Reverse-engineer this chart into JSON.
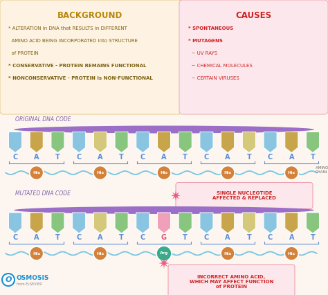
{
  "bg_color": "#fdf6f0",
  "bg_box_color": "#fef3e2",
  "causes_box_color": "#fce8ec",
  "bg_title": "BACKGROUND",
  "causes_title": "CAUSES",
  "bg_text_lines": [
    [
      "* ALTERATION in DNA that RESULTS in DIFFERENT",
      false
    ],
    [
      "  AMINO ACID BEING INCORPORATED into STRUCTURE",
      false
    ],
    [
      "  of PROTEIN",
      false
    ],
    [
      "* CONSERVATIVE - PROTEIN REMAINS FUNCTIONAL",
      true
    ],
    [
      "* NONCONSERVATIVE - PROTEIN is NON-FUNCTIONAL",
      true
    ]
  ],
  "causes_lines": [
    "* SPONTANEOUS",
    "* MUTAGENS",
    "  ~ UV RAYS",
    "  ~ CHEMICAL MOLECULES",
    "  ~ CERTAIN VIRUSES"
  ],
  "original_label": "ORIGINAL DNA CODE",
  "mutated_label": "MUTATED DNA CODE",
  "amino_acid_label": "AMINO ACID\nCHAIN",
  "single_nuc_label": "SINGLE NUCLEOTIDE\nAFFECTED & REPLACED",
  "incorrect_label": "INCORRECT AMINO ACID,\nWHICH MAY AFFECT FUNCTION\nof PROTEIN",
  "dna_letters_orig": [
    "C",
    "A",
    "T",
    "C",
    "A",
    "T",
    "C",
    "A",
    "T",
    "C",
    "A",
    "T",
    "C",
    "A",
    "T"
  ],
  "dna_letters_mut": [
    "C",
    "A",
    "T",
    "C",
    "A",
    "T",
    "C",
    "G",
    "T",
    "C",
    "A",
    "T",
    "C",
    "A",
    "T"
  ],
  "flag_colors_orig": [
    "#89c4e1",
    "#c8a44a",
    "#88c57f",
    "#89c4e1",
    "#d4c87a",
    "#88c57f",
    "#89c4e1",
    "#c8a44a",
    "#88c57f",
    "#89c4e1",
    "#c8a44a",
    "#d4c87a",
    "#89c4e1",
    "#c8a44a",
    "#88c57f"
  ],
  "flag_colors_mut": [
    "#89c4e1",
    "#c8a44a",
    "#88c57f",
    "#89c4e1",
    "#d4c87a",
    "#88c57f",
    "#89c4e1",
    "#f0a0b8",
    "#88c57f",
    "#89c4e1",
    "#c8a44a",
    "#d4c87a",
    "#89c4e1",
    "#c8a44a",
    "#88c57f"
  ],
  "his_color": "#d4813a",
  "arg_color": "#3aaa8a",
  "dna_bar_color": "#9b6fc8",
  "wave_color": "#7ec8e3",
  "osmosis_blue": "#1a8fd1",
  "title_color_bg": "#b8860b",
  "title_color_causes": "#cc2222",
  "text_color_bg": "#7a6010",
  "text_color_causes": "#cc2222",
  "letter_color": "#5b8dd9",
  "letter_color_g": "#e8507a",
  "label_color_orig": "#8060a8",
  "starburst_color": "#e8507a"
}
